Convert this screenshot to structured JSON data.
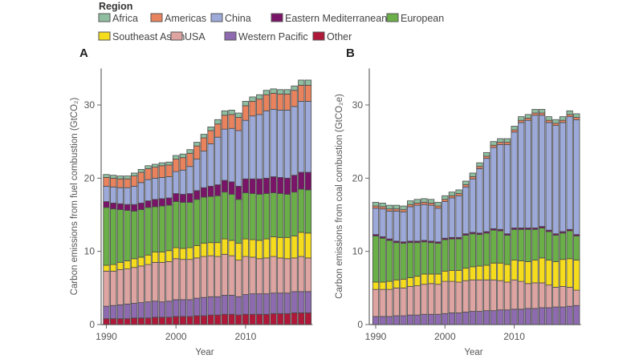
{
  "legend": {
    "title": "Region",
    "items": [
      {
        "name": "Africa",
        "color": "#8fbfa0"
      },
      {
        "name": "Americas",
        "color": "#e9835e"
      },
      {
        "name": "China",
        "color": "#9ca9d9"
      },
      {
        "name": "Eastern Mediterranean",
        "color": "#7a1468"
      },
      {
        "name": "European",
        "color": "#6aaf48"
      },
      {
        "name": "Southeast Asian",
        "color": "#f5dc1c"
      },
      {
        "name": "USA",
        "color": "#dea4a1"
      },
      {
        "name": "Western Pacific",
        "color": "#8e6bb0"
      },
      {
        "name": "Other",
        "color": "#b0183a"
      }
    ]
  },
  "chart_data": [
    {
      "type": "bar",
      "stacked": true,
      "panel_label": "A",
      "xlabel": "Year",
      "ylabel": "Carbon emissions from fuel combustion (GtCO₂)",
      "x": [
        1990,
        1991,
        1992,
        1993,
        1994,
        1995,
        1996,
        1997,
        1998,
        1999,
        2000,
        2001,
        2002,
        2003,
        2004,
        2005,
        2006,
        2007,
        2008,
        2009,
        2010,
        2011,
        2012,
        2013,
        2014,
        2015,
        2016,
        2017,
        2018,
        2019
      ],
      "xticks": [
        "1990",
        "2000",
        "2010"
      ],
      "yticks": [
        "0",
        "10",
        "20",
        "30"
      ],
      "ylim": [
        0,
        35
      ],
      "series": [
        {
          "name": "Other",
          "values": [
            0.8,
            0.8,
            0.8,
            0.8,
            0.9,
            0.9,
            0.9,
            1.0,
            1.0,
            1.0,
            1.1,
            1.1,
            1.1,
            1.2,
            1.2,
            1.3,
            1.3,
            1.4,
            1.4,
            1.3,
            1.4,
            1.4,
            1.4,
            1.4,
            1.5,
            1.5,
            1.5,
            1.6,
            1.6,
            1.6
          ]
        },
        {
          "name": "Western Pacific",
          "values": [
            1.7,
            1.8,
            1.9,
            2.0,
            2.0,
            2.1,
            2.2,
            2.2,
            2.1,
            2.2,
            2.3,
            2.3,
            2.3,
            2.4,
            2.5,
            2.5,
            2.5,
            2.6,
            2.6,
            2.5,
            2.7,
            2.8,
            2.8,
            2.8,
            2.8,
            2.8,
            2.8,
            2.9,
            2.9,
            2.9
          ]
        },
        {
          "name": "USA",
          "values": [
            4.8,
            4.7,
            4.8,
            4.8,
            4.9,
            5.0,
            5.1,
            5.3,
            5.4,
            5.4,
            5.6,
            5.5,
            5.5,
            5.5,
            5.6,
            5.6,
            5.5,
            5.6,
            5.4,
            5.0,
            5.2,
            5.0,
            4.8,
            4.9,
            5.0,
            4.8,
            4.7,
            4.6,
            4.8,
            4.6
          ]
        },
        {
          "name": "Southeast Asian",
          "values": [
            0.8,
            0.9,
            1.0,
            1.1,
            1.2,
            1.2,
            1.3,
            1.4,
            1.4,
            1.5,
            1.5,
            1.5,
            1.6,
            1.7,
            1.8,
            1.8,
            1.9,
            2.1,
            2.1,
            2.3,
            2.4,
            2.4,
            2.5,
            2.6,
            2.7,
            2.8,
            2.9,
            3.0,
            3.3,
            3.4
          ]
        },
        {
          "name": "European",
          "values": [
            7.9,
            7.6,
            7.2,
            6.9,
            6.5,
            6.5,
            6.5,
            6.2,
            6.3,
            6.2,
            6.3,
            6.3,
            6.2,
            6.3,
            6.3,
            6.3,
            6.4,
            6.4,
            6.3,
            6.0,
            6.3,
            6.3,
            6.3,
            6.2,
            6.0,
            6.0,
            5.9,
            6.0,
            5.9,
            5.9
          ]
        },
        {
          "name": "Eastern Mediterranean",
          "values": [
            0.8,
            0.8,
            0.8,
            0.8,
            0.9,
            0.9,
            0.9,
            1.0,
            1.0,
            1.0,
            1.1,
            1.1,
            1.2,
            1.2,
            1.3,
            1.4,
            1.5,
            1.6,
            1.7,
            1.8,
            1.9,
            2.0,
            2.1,
            2.1,
            2.2,
            2.2,
            2.2,
            2.3,
            2.3,
            2.4
          ]
        },
        {
          "name": "China",
          "values": [
            2.1,
            2.2,
            2.2,
            2.3,
            2.5,
            2.8,
            2.9,
            2.9,
            2.9,
            2.9,
            3.0,
            3.3,
            3.7,
            4.3,
            5.0,
            5.8,
            6.5,
            7.0,
            7.3,
            7.6,
            8.0,
            8.6,
            8.8,
            9.2,
            9.2,
            9.2,
            9.3,
            9.4,
            9.7,
            9.7
          ]
        },
        {
          "name": "Americas",
          "values": [
            1.2,
            1.2,
            1.2,
            1.2,
            1.4,
            1.4,
            1.5,
            1.5,
            1.6,
            1.6,
            1.7,
            1.7,
            1.8,
            1.8,
            1.8,
            1.8,
            1.8,
            1.9,
            1.9,
            1.8,
            2.0,
            2.0,
            2.1,
            2.2,
            2.2,
            2.2,
            2.2,
            2.2,
            2.2,
            2.2
          ]
        },
        {
          "name": "Africa",
          "values": [
            0.4,
            0.4,
            0.4,
            0.4,
            0.4,
            0.4,
            0.4,
            0.4,
            0.4,
            0.4,
            0.5,
            0.5,
            0.5,
            0.5,
            0.5,
            0.5,
            0.6,
            0.6,
            0.6,
            0.6,
            0.6,
            0.6,
            0.6,
            0.6,
            0.6,
            0.6,
            0.6,
            0.6,
            0.7,
            0.7
          ]
        }
      ]
    },
    {
      "type": "bar",
      "stacked": true,
      "panel_label": "B",
      "xlabel": "Year",
      "ylabel": "Carbon emissions from coal combustion (GtCO₂e)",
      "x": [
        1990,
        1991,
        1992,
        1993,
        1994,
        1995,
        1996,
        1997,
        1998,
        1999,
        2000,
        2001,
        2002,
        2003,
        2004,
        2005,
        2006,
        2007,
        2008,
        2009,
        2010,
        2011,
        2012,
        2013,
        2014,
        2015,
        2016,
        2017,
        2018,
        2019
      ],
      "xticks": [
        "1990",
        "2000",
        "2010"
      ],
      "yticks": [
        "0",
        "10",
        "20",
        "30"
      ],
      "ylim": [
        0,
        35
      ],
      "series": [
        {
          "name": "Western Pacific",
          "values": [
            1.1,
            1.1,
            1.1,
            1.2,
            1.2,
            1.3,
            1.3,
            1.4,
            1.4,
            1.4,
            1.5,
            1.6,
            1.6,
            1.7,
            1.8,
            1.8,
            1.9,
            1.9,
            2.0,
            2.0,
            2.1,
            2.1,
            2.2,
            2.2,
            2.3,
            2.3,
            2.4,
            2.4,
            2.5,
            2.6
          ]
        },
        {
          "name": "USA",
          "values": [
            3.7,
            3.7,
            3.7,
            3.8,
            3.8,
            3.9,
            4.0,
            4.1,
            4.2,
            4.1,
            4.4,
            4.3,
            4.2,
            4.3,
            4.3,
            4.3,
            4.2,
            4.2,
            4.0,
            3.8,
            4.0,
            3.8,
            3.4,
            3.5,
            3.4,
            3.1,
            2.7,
            2.8,
            2.6,
            2.1
          ]
        },
        {
          "name": "Southeast Asian",
          "values": [
            1.0,
            1.0,
            1.1,
            1.1,
            1.2,
            1.2,
            1.3,
            1.4,
            1.3,
            1.4,
            1.4,
            1.5,
            1.6,
            1.7,
            1.8,
            1.9,
            2.0,
            2.3,
            2.4,
            2.4,
            2.7,
            2.8,
            3.0,
            3.1,
            3.4,
            3.4,
            3.5,
            3.7,
            3.9,
            4.1
          ]
        },
        {
          "name": "European",
          "values": [
            6.3,
            6.0,
            5.6,
            5.1,
            4.9,
            4.8,
            4.6,
            4.4,
            4.3,
            4.2,
            4.3,
            4.3,
            4.3,
            4.5,
            4.5,
            4.3,
            4.4,
            4.5,
            4.4,
            4.0,
            4.2,
            4.3,
            4.4,
            4.2,
            4.1,
            3.9,
            3.6,
            3.6,
            3.8,
            3.3
          ]
        },
        {
          "name": "Eastern Mediterranean",
          "values": [
            0.2,
            0.2,
            0.2,
            0.2,
            0.2,
            0.2,
            0.2,
            0.2,
            0.2,
            0.2,
            0.2,
            0.2,
            0.2,
            0.2,
            0.2,
            0.2,
            0.2,
            0.2,
            0.2,
            0.2,
            0.2,
            0.2,
            0.2,
            0.2,
            0.2,
            0.2,
            0.2,
            0.2,
            0.2,
            0.2
          ]
        },
        {
          "name": "China",
          "values": [
            3.6,
            3.8,
            3.8,
            4.1,
            4.1,
            4.7,
            4.9,
            4.9,
            4.9,
            4.6,
            5.0,
            5.4,
            5.7,
            6.4,
            7.3,
            8.8,
            10.0,
            11.1,
            11.6,
            12.2,
            13.1,
            14.4,
            14.7,
            15.4,
            15.2,
            14.7,
            14.8,
            14.9,
            15.4,
            15.7
          ]
        },
        {
          "name": "Americas",
          "values": [
            0.3,
            0.3,
            0.3,
            0.3,
            0.3,
            0.3,
            0.3,
            0.3,
            0.3,
            0.3,
            0.3,
            0.3,
            0.3,
            0.3,
            0.3,
            0.3,
            0.3,
            0.3,
            0.3,
            0.3,
            0.3,
            0.3,
            0.3,
            0.3,
            0.3,
            0.3,
            0.3,
            0.3,
            0.3,
            0.3
          ]
        },
        {
          "name": "Africa",
          "values": [
            0.5,
            0.5,
            0.5,
            0.5,
            0.5,
            0.5,
            0.5,
            0.5,
            0.5,
            0.5,
            0.5,
            0.5,
            0.5,
            0.5,
            0.5,
            0.5,
            0.5,
            0.5,
            0.5,
            0.5,
            0.5,
            0.5,
            0.5,
            0.5,
            0.5,
            0.5,
            0.5,
            0.5,
            0.5,
            0.5
          ]
        }
      ]
    }
  ]
}
